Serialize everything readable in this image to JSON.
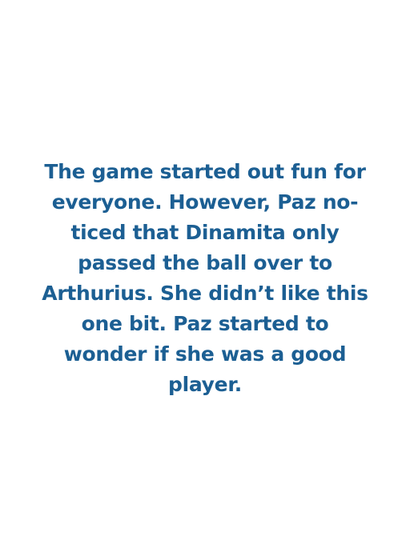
{
  "story": {
    "lines": [
      "The game started out fun for",
      "everyone. However, Paz no-",
      "ticed that Dinamita only",
      "passed the ball over to",
      "Arthurius. She didn’t like this",
      "one bit. Paz started to",
      "wonder if she was a good",
      "player."
    ]
  },
  "colors": {
    "text": "#1c5f93",
    "background": "#ffffff"
  }
}
